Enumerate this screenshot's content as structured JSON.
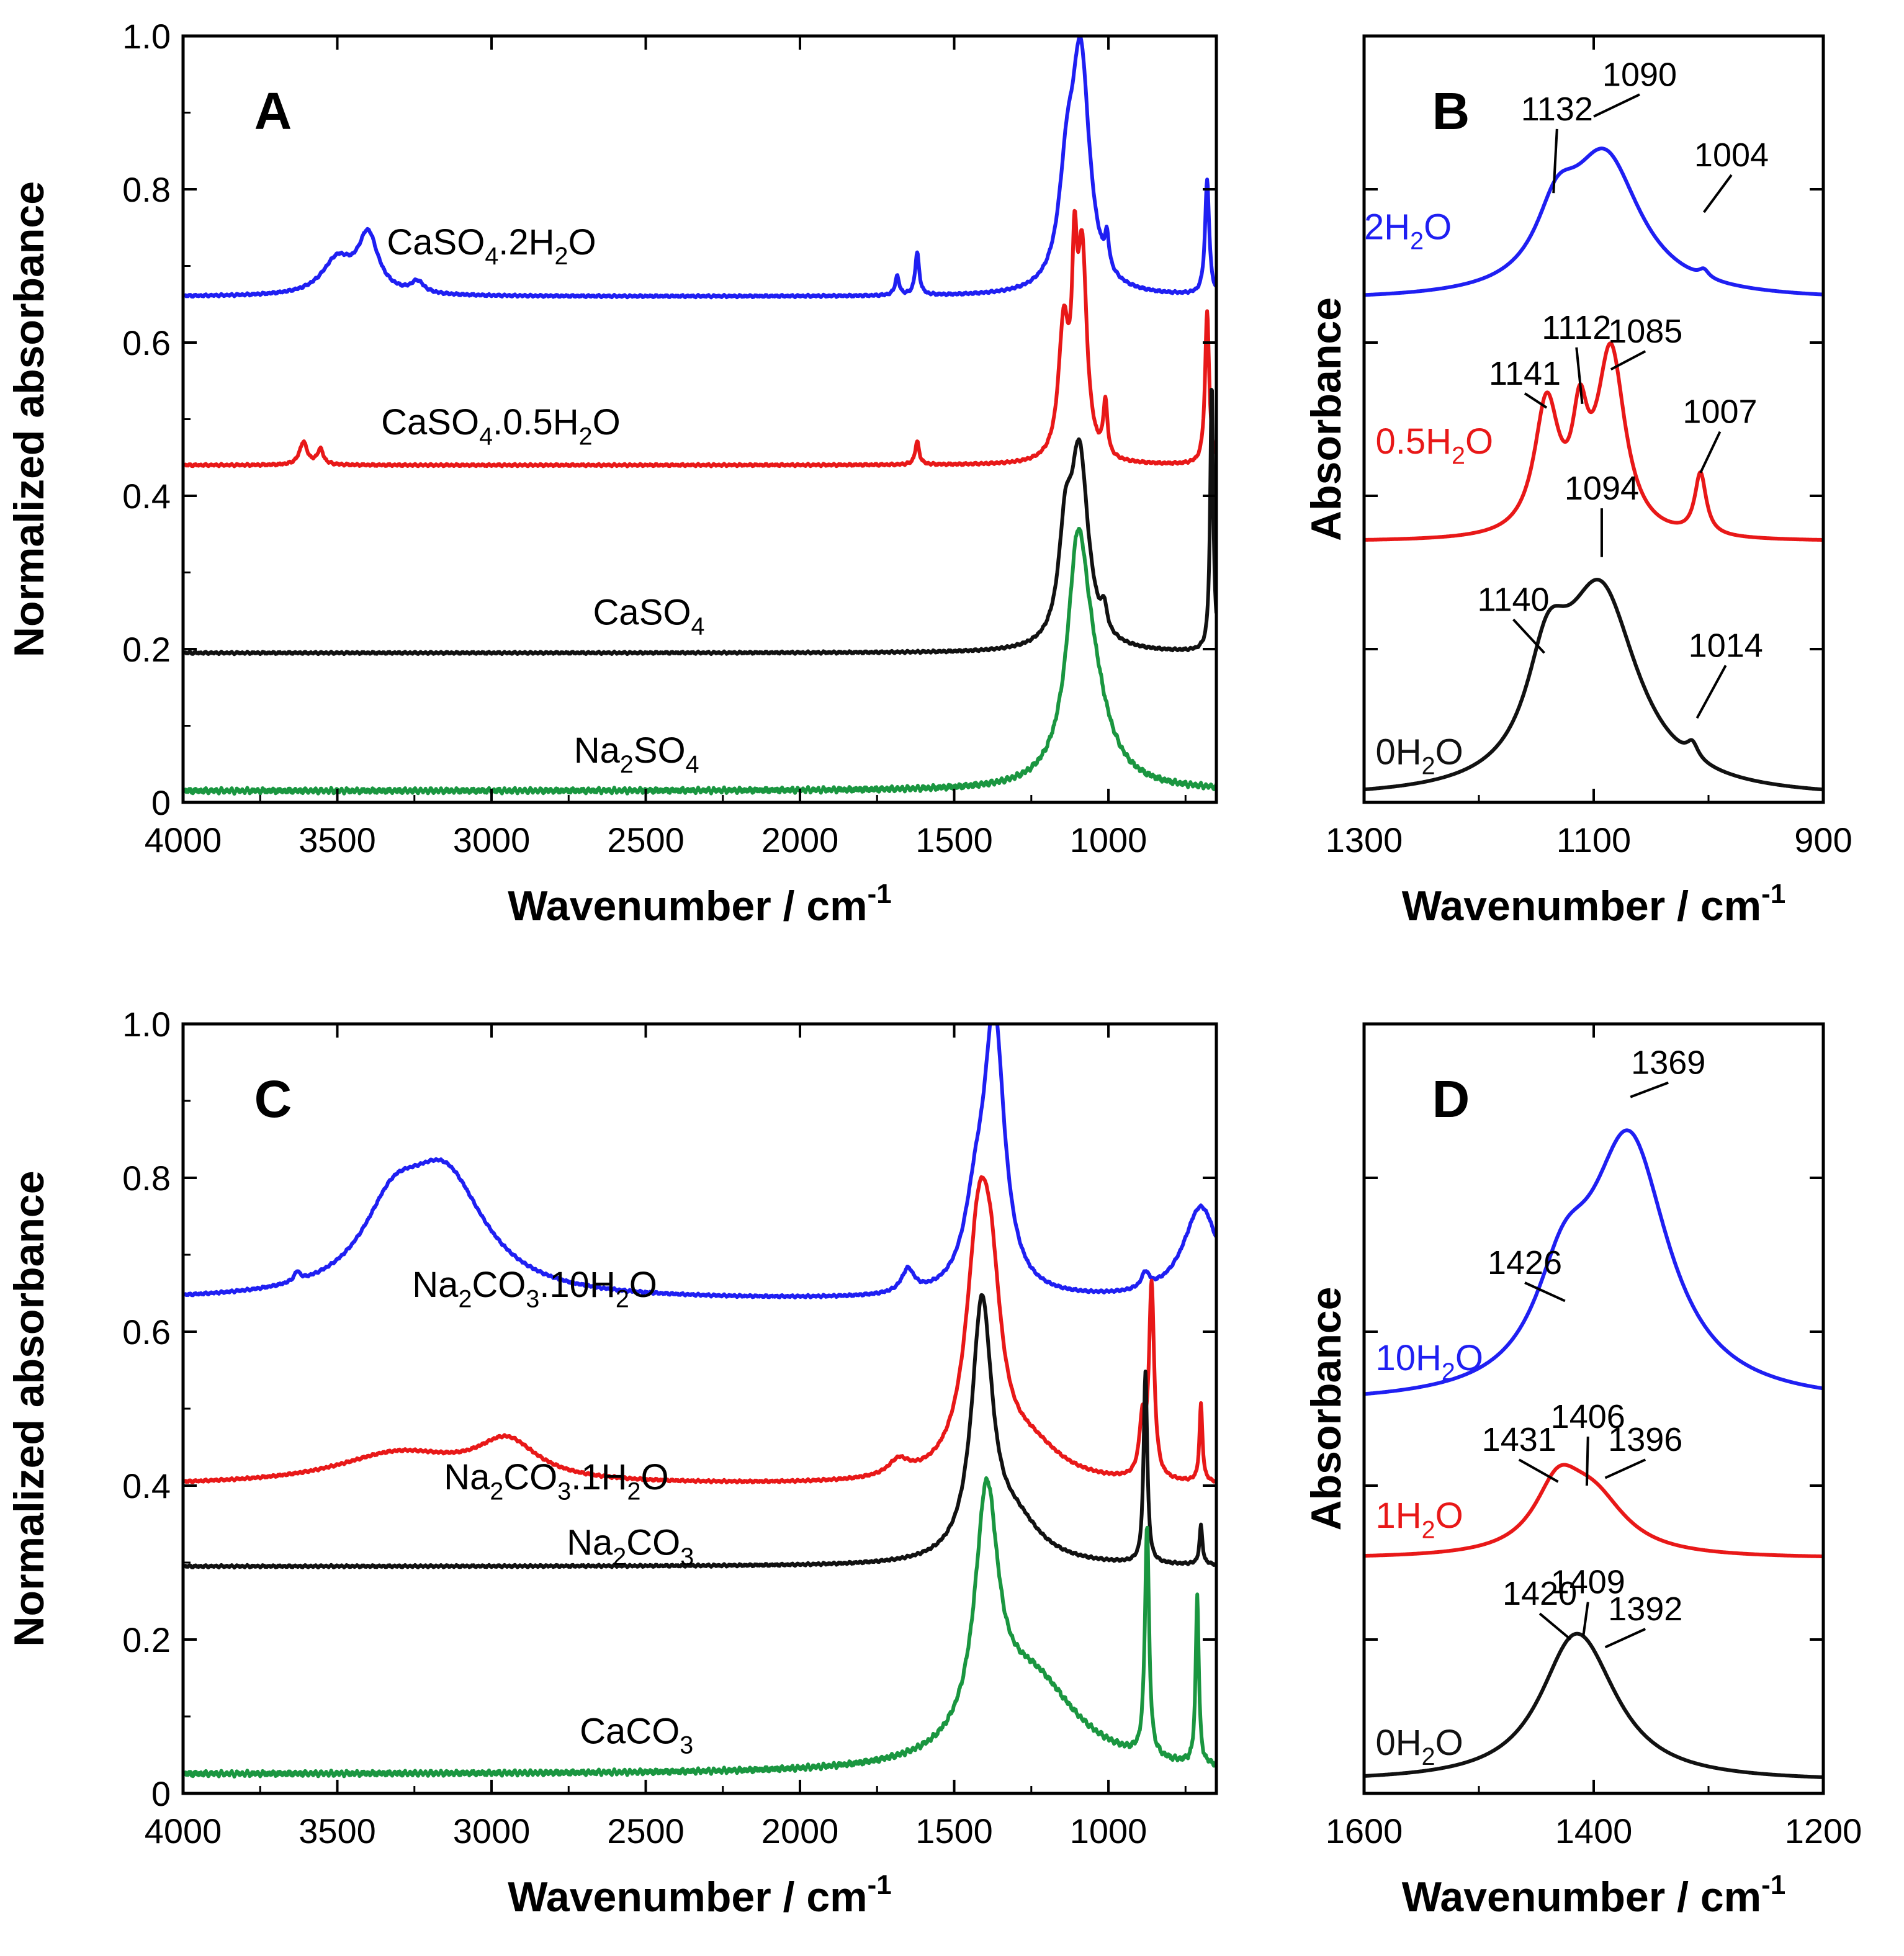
{
  "figure": {
    "colors": {
      "blue": "#1f1ff2",
      "red": "#e81818",
      "black": "#111111",
      "green": "#1a9640",
      "axis": "#000000"
    }
  },
  "chart_data": [
    {
      "id": "A",
      "type": "line",
      "panel_label": "A",
      "xlabel": "Wavenumber / cm",
      "xlabel_sup": "-1",
      "ylabel": "Normalized absorbance",
      "xlim": [
        4000,
        650
      ],
      "ylim": [
        0,
        1.0
      ],
      "xticks": [
        4000,
        3500,
        3000,
        2500,
        2000,
        1500,
        1000
      ],
      "xtick_labels": [
        "4000",
        "3500",
        "3000",
        "2500",
        "2000",
        "1500",
        "1000"
      ],
      "yticks": [
        0,
        0.2,
        0.4,
        0.6,
        0.8,
        1.0
      ],
      "ytick_labels": [
        "0",
        "0.2",
        "0.4",
        "0.6",
        "0.8",
        "1.0"
      ],
      "series": [
        {
          "name": "CaSO4.2H2O",
          "color": "blue",
          "baseline": 0.66,
          "peaks": [
            [
              3500,
              0.045,
              60
            ],
            [
              3400,
              0.075,
              40
            ],
            [
              3240,
              0.015,
              25
            ],
            [
              1685,
              0.025,
              8
            ],
            [
              1620,
              0.055,
              8
            ],
            [
              1135,
              0.12,
              30
            ],
            [
              1090,
              0.3,
              35
            ],
            [
              1005,
              0.04,
              8
            ],
            [
              680,
              0.15,
              8
            ]
          ],
          "label": [
            {
              "t": "CaSO"
            },
            {
              "t": "4",
              "s": "sub"
            },
            {
              "t": ".2H"
            },
            {
              "t": "2",
              "s": "sub"
            },
            {
              "t": "O"
            }
          ],
          "label_at": [
            3000,
            0.715
          ]
        },
        {
          "name": "CaSO4.0.5H2O",
          "color": "red",
          "baseline": 0.44,
          "peaks": [
            [
              3610,
              0.03,
              15
            ],
            [
              3555,
              0.02,
              12
            ],
            [
              1620,
              0.03,
              8
            ],
            [
              1145,
              0.17,
              20
            ],
            [
              1110,
              0.2,
              10
            ],
            [
              1085,
              0.26,
              18
            ],
            [
              1010,
              0.07,
              8
            ],
            [
              680,
              0.2,
              8
            ]
          ],
          "label": [
            {
              "t": "CaSO"
            },
            {
              "t": "4",
              "s": "sub"
            },
            {
              "t": ".0.5H"
            },
            {
              "t": "2",
              "s": "sub"
            },
            {
              "t": "O"
            }
          ],
          "label_at": [
            2970,
            0.48
          ]
        },
        {
          "name": "CaSO4",
          "color": "black",
          "baseline": 0.195,
          "peaks": [
            [
              1140,
              0.12,
              25
            ],
            [
              1094,
              0.25,
              35
            ],
            [
              1014,
              0.03,
              10
            ],
            [
              665,
              0.35,
              6
            ]
          ],
          "label": [
            {
              "t": "CaSO"
            },
            {
              "t": "4",
              "s": "sub"
            }
          ],
          "label_at": [
            2490,
            0.232
          ]
        },
        {
          "name": "Na2SO4",
          "color": "green",
          "baseline": 0.015,
          "peaks": [
            [
              1100,
              0.25,
              40
            ],
            [
              1060,
              0.12,
              70
            ]
          ],
          "label": [
            {
              "t": "Na"
            },
            {
              "t": "2",
              "s": "sub"
            },
            {
              "t": "SO"
            },
            {
              "t": "4",
              "s": "sub"
            }
          ],
          "label_at": [
            2530,
            0.052
          ]
        }
      ]
    },
    {
      "id": "B",
      "type": "line",
      "panel_label": "B",
      "xlabel": "Wavenumber / cm",
      "xlabel_sup": "-1",
      "ylabel": "Absorbance",
      "xlim": [
        1300,
        900
      ],
      "ylim": [
        0,
        1.0
      ],
      "xticks": [
        1300,
        1100,
        900
      ],
      "xtick_labels": [
        "1300",
        "1100",
        "900"
      ],
      "yticks": [
        0.2,
        0.4,
        0.6,
        0.8
      ],
      "ytick_labels": [],
      "series": [
        {
          "name": "2H2O",
          "color": "blue",
          "baseline": 0.655,
          "peaks": [
            [
              1132,
              0.08,
              22
            ],
            [
              1090,
              0.18,
              38
            ],
            [
              1004,
              0.01,
              5
            ]
          ],
          "label": [
            {
              "t": "2H"
            },
            {
              "t": "2",
              "s": "sub"
            },
            {
              "t": "O"
            }
          ],
          "label_at": [
            1300,
            0.735
          ],
          "label_anchor": "start"
        },
        {
          "name": "0.5H2O",
          "color": "red",
          "baseline": 0.34,
          "peaks": [
            [
              1141,
              0.17,
              13
            ],
            [
              1112,
              0.12,
              8
            ],
            [
              1085,
              0.24,
              15
            ],
            [
              1007,
              0.08,
              6
            ]
          ],
          "label": [
            {
              "t": "0.5H"
            },
            {
              "t": "2",
              "s": "sub"
            },
            {
              "t": "O"
            }
          ],
          "label_at": [
            1290,
            0.455
          ],
          "label_anchor": "start"
        },
        {
          "name": "0H2O",
          "color": "black",
          "baseline": 0.005,
          "peaks": [
            [
              1140,
              0.13,
              22
            ],
            [
              1094,
              0.26,
              40
            ],
            [
              1014,
              0.02,
              6
            ]
          ],
          "label": [
            {
              "t": "0H"
            },
            {
              "t": "2",
              "s": "sub"
            },
            {
              "t": "O"
            }
          ],
          "label_at": [
            1290,
            0.05
          ],
          "label_anchor": "start"
        }
      ],
      "annotations": [
        {
          "text": "1132",
          "at": [
            1132,
            0.89
          ],
          "tip": [
            1135,
            0.795
          ]
        },
        {
          "text": "1090",
          "at": [
            1060,
            0.935
          ],
          "tip": [
            1100,
            0.895
          ]
        },
        {
          "text": "1004",
          "at": [
            980,
            0.83
          ],
          "tip": [
            1004,
            0.77
          ]
        },
        {
          "text": "1112",
          "at": [
            1115,
            0.605
          ],
          "tip": [
            1110,
            0.52
          ]
        },
        {
          "text": "1085",
          "at": [
            1055,
            0.6
          ],
          "tip": [
            1085,
            0.565
          ]
        },
        {
          "text": "1141",
          "at": [
            1160,
            0.545
          ],
          "tip": [
            1141,
            0.515
          ]
        },
        {
          "text": "1007",
          "at": [
            990,
            0.495
          ],
          "tip": [
            1007,
            0.43
          ]
        },
        {
          "text": "1094",
          "at": [
            1093,
            0.395
          ],
          "tip": [
            1093,
            0.32
          ]
        },
        {
          "text": "1140",
          "at": [
            1170,
            0.25
          ],
          "tip": [
            1143,
            0.195
          ]
        },
        {
          "text": "1014",
          "at": [
            985,
            0.19
          ],
          "tip": [
            1010,
            0.11
          ]
        }
      ]
    },
    {
      "id": "C",
      "type": "line",
      "panel_label": "C",
      "xlabel": "Wavenumber / cm",
      "xlabel_sup": "-1",
      "ylabel": "Normalized absorbance",
      "xlim": [
        4000,
        650
      ],
      "ylim": [
        0,
        1.0
      ],
      "xticks": [
        4000,
        3500,
        3000,
        2500,
        2000,
        1500,
        1000
      ],
      "xtick_labels": [
        "4000",
        "3500",
        "3000",
        "2500",
        "2000",
        "1500",
        "1000"
      ],
      "yticks": [
        0,
        0.2,
        0.4,
        0.6,
        0.8,
        1.0
      ],
      "ytick_labels": [
        "0",
        "0.2",
        "0.4",
        "0.6",
        "0.8",
        "1.0"
      ],
      "series": [
        {
          "name": "Na2CO3.10H2O",
          "color": "blue",
          "baseline": 0.64,
          "peaks": [
            [
              3630,
              0.012,
              12
            ],
            [
              3320,
              0.09,
              120
            ],
            [
              3150,
              0.15,
              160
            ],
            [
              1650,
              0.03,
              25
            ],
            [
              1370,
              0.35,
              40
            ],
            [
              1430,
              0.09,
              45
            ],
            [
              880,
              0.02,
              15
            ],
            [
              700,
              0.12,
              70
            ]
          ],
          "label": [
            {
              "t": "Na"
            },
            {
              "t": "2",
              "s": "sub"
            },
            {
              "t": "CO"
            },
            {
              "t": "3",
              "s": "sub"
            },
            {
              "t": ".10H"
            },
            {
              "t": "2",
              "s": "sub"
            },
            {
              "t": "O"
            }
          ],
          "label_at": [
            2860,
            0.645
          ]
        },
        {
          "name": "Na2CO3.1H2O",
          "color": "red",
          "baseline": 0.4,
          "peaks": [
            [
              3300,
              0.04,
              250
            ],
            [
              2950,
              0.05,
              120
            ],
            [
              1680,
              0.02,
              40
            ],
            [
              1420,
              0.3,
              50
            ],
            [
              1380,
              0.15,
              40
            ],
            [
              1250,
              0.04,
              120
            ],
            [
              890,
              0.07,
              12
            ],
            [
              860,
              0.25,
              10
            ],
            [
              700,
              0.1,
              6
            ]
          ],
          "label": [
            {
              "t": "Na"
            },
            {
              "t": "2",
              "s": "sub"
            },
            {
              "t": "CO"
            },
            {
              "t": "3",
              "s": "sub"
            },
            {
              "t": ".1H"
            },
            {
              "t": "2",
              "s": "sub"
            },
            {
              "t": "O"
            }
          ],
          "label_at": [
            2790,
            0.395
          ]
        },
        {
          "name": "Na2CO3",
          "color": "black",
          "baseline": 0.295,
          "peaks": [
            [
              1410,
              0.33,
              40
            ],
            [
              1300,
              0.05,
              100
            ],
            [
              880,
              0.25,
              7
            ],
            [
              700,
              0.05,
              6
            ]
          ],
          "label": [
            {
              "t": "Na"
            },
            {
              "t": "2",
              "s": "sub"
            },
            {
              "t": "CO"
            },
            {
              "t": "3",
              "s": "sub"
            }
          ],
          "label_at": [
            2550,
            0.31
          ]
        },
        {
          "name": "CaCO3",
          "color": "green",
          "baseline": 0.025,
          "peaks": [
            [
              1395,
              0.31,
              45
            ],
            [
              1250,
              0.12,
              180
            ],
            [
              875,
              0.3,
              8
            ],
            [
              712,
              0.22,
              6
            ]
          ],
          "label": [
            {
              "t": "CaCO"
            },
            {
              "t": "3",
              "s": "sub"
            }
          ],
          "label_at": [
            2530,
            0.065
          ]
        }
      ]
    },
    {
      "id": "D",
      "type": "line",
      "panel_label": "D",
      "xlabel": "Wavenumber / cm",
      "xlabel_sup": "-1",
      "ylabel": "Absorbance",
      "xlim": [
        1600,
        1200
      ],
      "ylim": [
        0,
        1.0
      ],
      "xticks": [
        1600,
        1400,
        1200
      ],
      "xtick_labels": [
        "1600",
        "1400",
        "1200"
      ],
      "yticks": [
        0.2,
        0.4,
        0.6,
        0.8
      ],
      "ytick_labels": [],
      "series": [
        {
          "name": "10H2O",
          "color": "blue",
          "baseline": 0.505,
          "peaks": [
            [
              1426,
              0.12,
              30
            ],
            [
              1369,
              0.33,
              42
            ]
          ],
          "label": [
            {
              "t": "10H"
            },
            {
              "t": "2",
              "s": "sub"
            },
            {
              "t": "O"
            }
          ],
          "label_at": [
            1590,
            0.55
          ],
          "label_anchor": "start"
        },
        {
          "name": "1H2O",
          "color": "red",
          "baseline": 0.305,
          "peaks": [
            [
              1431,
              0.08,
              25
            ],
            [
              1400,
              0.07,
              35
            ]
          ],
          "label": [
            {
              "t": "1H"
            },
            {
              "t": "2",
              "s": "sub"
            },
            {
              "t": "O"
            }
          ],
          "label_at": [
            1590,
            0.345
          ],
          "label_anchor": "start"
        },
        {
          "name": "0H2O",
          "color": "black",
          "baseline": 0.015,
          "peaks": [
            [
              1420,
              0.11,
              35
            ],
            [
              1405,
              0.09,
              40
            ]
          ],
          "label": [
            {
              "t": "0H"
            },
            {
              "t": "2",
              "s": "sub"
            },
            {
              "t": "O"
            }
          ],
          "label_at": [
            1590,
            0.05
          ],
          "label_anchor": "start"
        }
      ],
      "annotations": [
        {
          "text": "1369",
          "at": [
            1335,
            0.935
          ],
          "tip": [
            1368,
            0.905
          ]
        },
        {
          "text": "1426",
          "at": [
            1460,
            0.675
          ],
          "tip": [
            1425,
            0.64
          ]
        },
        {
          "text": "1431",
          "at": [
            1465,
            0.445
          ],
          "tip": [
            1431,
            0.405
          ]
        },
        {
          "text": "1406",
          "at": [
            1405,
            0.475
          ],
          "tip": [
            1406,
            0.4
          ]
        },
        {
          "text": "1396",
          "at": [
            1355,
            0.445
          ],
          "tip": [
            1390,
            0.41
          ]
        },
        {
          "text": "1420",
          "at": [
            1447,
            0.245
          ],
          "tip": [
            1420,
            0.2
          ]
        },
        {
          "text": "1409",
          "at": [
            1405,
            0.26
          ],
          "tip": [
            1409,
            0.205
          ]
        },
        {
          "text": "1392",
          "at": [
            1355,
            0.225
          ],
          "tip": [
            1390,
            0.19
          ]
        }
      ]
    }
  ]
}
